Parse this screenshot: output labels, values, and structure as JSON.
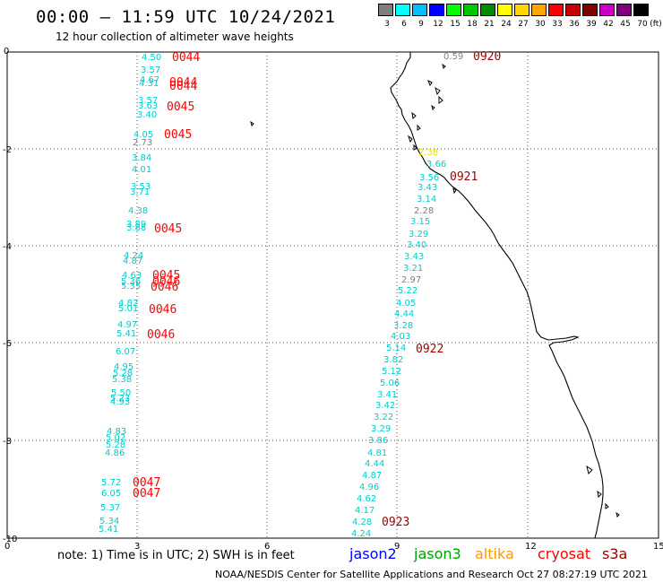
{
  "header": {
    "title": "00:00 – 11:59 UTC 10/24/2021",
    "subtitle": "12 hour collection of altimeter wave heights"
  },
  "color_scale": {
    "unit": "(ft)",
    "bins": [
      {
        "label": "3",
        "color": "#7f7f7f"
      },
      {
        "label": "6",
        "color": "#00ffff"
      },
      {
        "label": "9",
        "color": "#00bfff"
      },
      {
        "label": "12",
        "color": "#0000ff"
      },
      {
        "label": "15",
        "color": "#00ff00"
      },
      {
        "label": "18",
        "color": "#00c800"
      },
      {
        "label": "21",
        "color": "#008c00"
      },
      {
        "label": "24",
        "color": "#ffff00"
      },
      {
        "label": "27",
        "color": "#ffd700"
      },
      {
        "label": "30",
        "color": "#ffa500"
      },
      {
        "label": "33",
        "color": "#ff0000"
      },
      {
        "label": "36",
        "color": "#c80000"
      },
      {
        "label": "39",
        "color": "#800000"
      },
      {
        "label": "42",
        "color": "#c800c8"
      },
      {
        "label": "45",
        "color": "#800080"
      },
      {
        "label": "70",
        "color": "#000000"
      }
    ]
  },
  "axes": {
    "x_ticks": [
      "0",
      "3",
      "6",
      "9",
      "12",
      "15"
    ],
    "y_ticks": [
      "0",
      "-2",
      "-4",
      "-6",
      "-8",
      "-10"
    ]
  },
  "colors": {
    "cyan": "#00cccc",
    "red": "#ff0000",
    "darkred": "#990000",
    "gray": "#808080",
    "yellow": "#f0e000"
  },
  "track1": {
    "values": [
      {
        "t": "4.50",
        "c": "cyan"
      },
      {
        "t": "3.57",
        "c": "cyan"
      },
      {
        "t": "4.67",
        "c": "cyan"
      },
      {
        "t": "4.31",
        "c": "cyan"
      },
      {
        "t": "3.57",
        "c": "cyan"
      },
      {
        "t": "3.63",
        "c": "cyan"
      },
      {
        "t": "3.40",
        "c": "cyan"
      },
      {
        "t": "4.05",
        "c": "cyan"
      },
      {
        "t": "2.73",
        "c": "gray"
      },
      {
        "t": "3.84",
        "c": "cyan"
      },
      {
        "t": "4.01",
        "c": "cyan"
      },
      {
        "t": "3.53",
        "c": "cyan"
      },
      {
        "t": "3.71",
        "c": "cyan"
      },
      {
        "t": "4.38",
        "c": "cyan"
      },
      {
        "t": "3.89",
        "c": "cyan"
      },
      {
        "t": "3.88",
        "c": "cyan"
      },
      {
        "t": "4.24",
        "c": "cyan"
      },
      {
        "t": "4.87",
        "c": "cyan"
      },
      {
        "t": "4.63",
        "c": "cyan"
      },
      {
        "t": "5.36",
        "c": "cyan"
      },
      {
        "t": "5.35",
        "c": "cyan"
      },
      {
        "t": "4.82",
        "c": "cyan"
      },
      {
        "t": "5.01",
        "c": "cyan"
      },
      {
        "t": "4.97",
        "c": "cyan"
      },
      {
        "t": "5.41",
        "c": "cyan"
      },
      {
        "t": "6.07",
        "c": "cyan"
      },
      {
        "t": "4.95",
        "c": "cyan"
      },
      {
        "t": "5.28",
        "c": "cyan"
      },
      {
        "t": "5.38",
        "c": "cyan"
      },
      {
        "t": "5.50",
        "c": "cyan"
      },
      {
        "t": "5.23",
        "c": "cyan"
      },
      {
        "t": "4.93",
        "c": "cyan"
      },
      {
        "t": "4.83",
        "c": "cyan"
      },
      {
        "t": "5.02",
        "c": "cyan"
      },
      {
        "t": "5.28",
        "c": "cyan"
      },
      {
        "t": "4.86",
        "c": "cyan"
      },
      {
        "t": "5.72",
        "c": "cyan"
      },
      {
        "t": "6.05",
        "c": "cyan"
      },
      {
        "t": "5.37",
        "c": "cyan"
      },
      {
        "t": "5.34",
        "c": "cyan"
      },
      {
        "t": "5.41",
        "c": "cyan"
      }
    ],
    "times": [
      {
        "t": "0044",
        "c": "red"
      },
      {
        "t": "0044",
        "c": "red"
      },
      {
        "t": "0044",
        "c": "red"
      },
      {
        "t": "0045",
        "c": "red"
      },
      {
        "t": "0045",
        "c": "red"
      },
      {
        "t": "0045",
        "c": "red"
      },
      {
        "t": "0045",
        "c": "red"
      },
      {
        "t": "0046",
        "c": "red"
      },
      {
        "t": "0046",
        "c": "red"
      },
      {
        "t": "0046",
        "c": "red"
      },
      {
        "t": "0046",
        "c": "red"
      },
      {
        "t": "0047",
        "c": "red"
      },
      {
        "t": "0047",
        "c": "red"
      }
    ]
  },
  "track2": {
    "values": [
      {
        "t": "0.59",
        "c": "gray"
      },
      {
        "t": "2.38",
        "c": "yellow"
      },
      {
        "t": "3.66",
        "c": "cyan"
      },
      {
        "t": "3.56",
        "c": "cyan"
      },
      {
        "t": "3.43",
        "c": "cyan"
      },
      {
        "t": "3.14",
        "c": "cyan"
      },
      {
        "t": "2.28",
        "c": "gray"
      },
      {
        "t": "3.15",
        "c": "cyan"
      },
      {
        "t": "3.29",
        "c": "cyan"
      },
      {
        "t": "3.40",
        "c": "cyan"
      },
      {
        "t": "3.43",
        "c": "cyan"
      },
      {
        "t": "3.21",
        "c": "cyan"
      },
      {
        "t": "2.97",
        "c": "gray"
      },
      {
        "t": "5.22",
        "c": "cyan"
      },
      {
        "t": "4.05",
        "c": "cyan"
      },
      {
        "t": "4.44",
        "c": "cyan"
      },
      {
        "t": "3.28",
        "c": "cyan"
      },
      {
        "t": "4.03",
        "c": "cyan"
      },
      {
        "t": "5.14",
        "c": "cyan"
      },
      {
        "t": "3.82",
        "c": "cyan"
      },
      {
        "t": "5.12",
        "c": "cyan"
      },
      {
        "t": "5.06",
        "c": "cyan"
      },
      {
        "t": "3.41",
        "c": "cyan"
      },
      {
        "t": "3.42",
        "c": "cyan"
      },
      {
        "t": "3.22",
        "c": "cyan"
      },
      {
        "t": "3.29",
        "c": "cyan"
      },
      {
        "t": "3.86",
        "c": "cyan"
      },
      {
        "t": "4.81",
        "c": "cyan"
      },
      {
        "t": "4.44",
        "c": "cyan"
      },
      {
        "t": "4.87",
        "c": "cyan"
      },
      {
        "t": "4.96",
        "c": "cyan"
      },
      {
        "t": "4.62",
        "c": "cyan"
      },
      {
        "t": "4.17",
        "c": "cyan"
      },
      {
        "t": "4.28",
        "c": "cyan"
      },
      {
        "t": "4.24",
        "c": "cyan"
      }
    ],
    "times": [
      {
        "t": "0920",
        "c": "darkred"
      },
      {
        "t": "0921",
        "c": "darkred"
      },
      {
        "t": "0922",
        "c": "darkred"
      },
      {
        "t": "0923",
        "c": "darkred"
      }
    ]
  },
  "footer": {
    "note": "note:  1) Time is in UTC;  2) SWH is in feet",
    "satellites": [
      {
        "name": "jason2",
        "color": "#0000ff"
      },
      {
        "name": "jason3",
        "color": "#00a000"
      },
      {
        "name": "altika",
        "color": "#ff9900"
      },
      {
        "name": "cryosat",
        "color": "#ff0000"
      },
      {
        "name": "s3a",
        "color": "#990000"
      }
    ],
    "credit": "NOAA/NESDIS Center for Satellite Applications and Research     Oct 27 08:27:19 UTC 2021"
  }
}
